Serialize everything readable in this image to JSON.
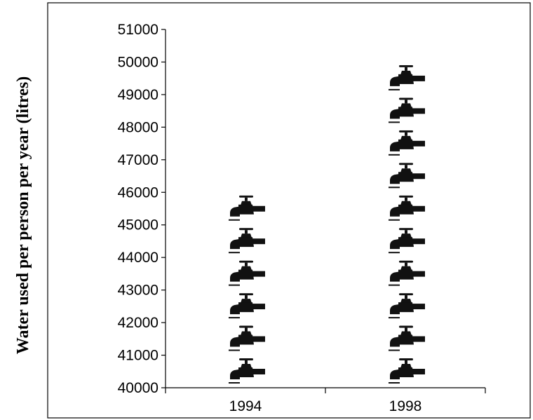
{
  "chart_data": {
    "type": "pictograph",
    "icon": "water-tap-icon",
    "icon_unit": 1000,
    "categories": [
      "1994",
      "1998"
    ],
    "values": [
      46000,
      50000
    ],
    "title": "",
    "xlabel": "",
    "ylabel": "Water used per person per year (litres)",
    "ylim": [
      40000,
      51000
    ],
    "yticks": [
      40000,
      41000,
      42000,
      43000,
      44000,
      45000,
      46000,
      47000,
      48000,
      49000,
      50000,
      51000
    ],
    "grid": false,
    "legend": "none",
    "colors": {
      "icon": "#111111",
      "axis": "#000000"
    }
  }
}
